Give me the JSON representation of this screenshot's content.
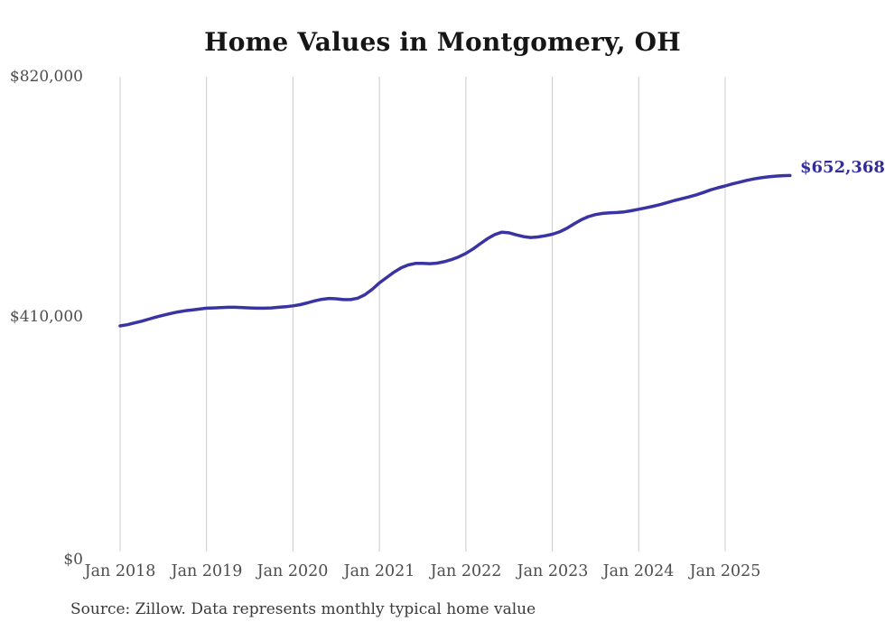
{
  "chart": {
    "title": "Home Values in Montgomery, OH",
    "source": "Source: Zillow. Data represents monthly typical home value"
  },
  "chart_data": {
    "type": "line",
    "title": "Home Values in Montgomery, OH",
    "xlabel": "",
    "ylabel": "",
    "frequency": "monthly",
    "start_month": "Jan 2018",
    "end_month": "Oct 2025",
    "ylim": [
      0,
      820000
    ],
    "grid": "vertical-only",
    "legend": "none",
    "line_color": "#3a34a3",
    "gridline_color": "#cccccc",
    "end_label": "$652,368",
    "end_value": 652368,
    "y_tick_labels": [
      "$820,000",
      "$410,000",
      "$0"
    ],
    "x_tick_labels": [
      "Jan 2018",
      "Jan 2019",
      "Jan 2020",
      "Jan 2021",
      "Jan 2022",
      "Jan 2023",
      "Jan 2024",
      "Jan 2025"
    ],
    "values": [
      397000,
      399000,
      402000,
      405000,
      408500,
      412000,
      415000,
      418000,
      420500,
      422500,
      424000,
      425500,
      427000,
      427500,
      428000,
      428500,
      428500,
      428000,
      427500,
      427000,
      427000,
      427500,
      428500,
      429500,
      431000,
      433000,
      436000,
      439500,
      442000,
      443500,
      443000,
      441500,
      441500,
      444000,
      450000,
      459000,
      470000,
      479000,
      488000,
      495500,
      500500,
      503000,
      503000,
      502500,
      503500,
      506000,
      509500,
      514000,
      520000,
      527500,
      536500,
      545000,
      552000,
      556000,
      555000,
      551500,
      548500,
      547000,
      548000,
      550000,
      552500,
      556500,
      562500,
      570000,
      577000,
      582500,
      586000,
      588000,
      589000,
      589500,
      590500,
      592500,
      595000,
      597500,
      600000,
      603000,
      606500,
      610000,
      613000,
      616000,
      619500,
      623500,
      628000,
      631500,
      634500,
      638000,
      641000,
      644000,
      646500,
      648500,
      650000,
      651200,
      652000,
      652368
    ]
  }
}
